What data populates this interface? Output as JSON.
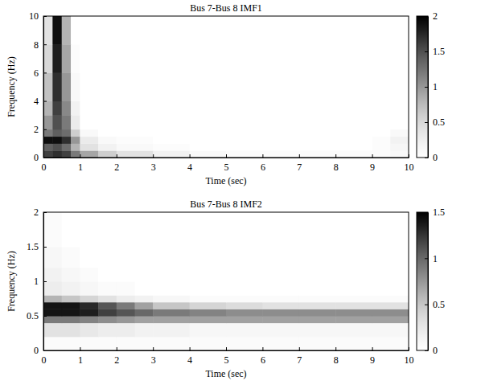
{
  "chart_data": [
    {
      "type": "heatmap",
      "title": "Bus 7-Bus 8 IMF1",
      "xlabel": "Time (sec)",
      "ylabel": "Frequency (Hz)",
      "x_edges": [
        0,
        0.25,
        0.5,
        0.75,
        1,
        1.5,
        2,
        3,
        4,
        5,
        6,
        7,
        8,
        9,
        9.5,
        10
      ],
      "y_edges": [
        0,
        0.5,
        1,
        1.5,
        2,
        3,
        4,
        6,
        8,
        10
      ],
      "cells": [
        [
          1.6,
          1.7,
          1.6,
          1.2,
          0.9,
          0.6,
          0.4,
          0.2,
          0.1,
          0.05,
          0.05,
          0.05,
          0.05,
          0.05,
          0.1
        ],
        [
          1.4,
          1.5,
          1.3,
          0.8,
          0.4,
          0.2,
          0.1,
          0.05,
          0,
          0,
          0,
          0,
          0,
          0.05,
          0.15
        ],
        [
          1.9,
          1.9,
          1.7,
          1.0,
          0.3,
          0.1,
          0.05,
          0,
          0,
          0,
          0,
          0,
          0,
          0.05,
          0.2
        ],
        [
          1.2,
          1.4,
          1.3,
          0.6,
          0.1,
          0,
          0,
          0,
          0,
          0,
          0,
          0,
          0,
          0,
          0.1
        ],
        [
          1.0,
          1.5,
          1.2,
          0.3,
          0,
          0,
          0,
          0,
          0,
          0,
          0,
          0,
          0,
          0,
          0
        ],
        [
          0.8,
          1.6,
          1.1,
          0.2,
          0,
          0,
          0,
          0,
          0,
          0,
          0,
          0,
          0,
          0,
          0
        ],
        [
          0.7,
          1.7,
          1.0,
          0.1,
          0,
          0,
          0,
          0,
          0,
          0,
          0,
          0,
          0,
          0,
          0
        ],
        [
          0.5,
          1.8,
          0.9,
          0.05,
          0,
          0,
          0,
          0,
          0,
          0,
          0,
          0,
          0,
          0,
          0
        ],
        [
          0.4,
          1.9,
          0.8,
          0,
          0,
          0,
          0,
          0,
          0,
          0,
          0,
          0,
          0,
          0,
          0
        ]
      ],
      "xlim": [
        0,
        10
      ],
      "xticks": [
        0,
        1,
        2,
        3,
        4,
        5,
        6,
        7,
        8,
        9,
        10
      ],
      "ylim": [
        0,
        10
      ],
      "yticks": [
        0,
        2,
        4,
        6,
        8,
        10
      ],
      "colorbar_range": [
        0,
        2
      ],
      "colorbar_ticks": [
        0,
        0.5,
        1,
        1.5,
        2
      ]
    },
    {
      "type": "heatmap",
      "title": "Bus 7-Bus 8 IMF2",
      "xlabel": "Time (sec)",
      "ylabel": "Frequency (Hz)",
      "x_edges": [
        0,
        0.5,
        1,
        1.5,
        2,
        2.5,
        3,
        4,
        5,
        6,
        7,
        8,
        9,
        10
      ],
      "y_edges": [
        0,
        0.2,
        0.4,
        0.5,
        0.6,
        0.7,
        0.8,
        1,
        1.2,
        1.5,
        2
      ],
      "cells": [
        [
          0.05,
          0.05,
          0.05,
          0.05,
          0.05,
          0.05,
          0.05,
          0.05,
          0.05,
          0.05,
          0.05,
          0.05,
          0.05
        ],
        [
          0.3,
          0.3,
          0.25,
          0.2,
          0.2,
          0.15,
          0.15,
          0.1,
          0.1,
          0.1,
          0.1,
          0.1,
          0.1
        ],
        [
          0.9,
          0.9,
          0.85,
          0.8,
          0.75,
          0.7,
          0.7,
          0.7,
          0.7,
          0.7,
          0.7,
          0.7,
          0.7
        ],
        [
          1.4,
          1.4,
          1.35,
          1.2,
          1.1,
          1.0,
          0.9,
          0.85,
          0.8,
          0.8,
          0.8,
          0.8,
          0.8
        ],
        [
          1.4,
          1.4,
          1.3,
          1.1,
          0.9,
          0.7,
          0.5,
          0.4,
          0.35,
          0.3,
          0.3,
          0.3,
          0.3
        ],
        [
          0.6,
          0.5,
          0.4,
          0.3,
          0.2,
          0.15,
          0.1,
          0.05,
          0.05,
          0.05,
          0.05,
          0.05,
          0.05
        ],
        [
          0.2,
          0.15,
          0.1,
          0.05,
          0.05,
          0,
          0,
          0,
          0,
          0,
          0,
          0,
          0
        ],
        [
          0.15,
          0.1,
          0.05,
          0,
          0,
          0,
          0,
          0,
          0,
          0,
          0,
          0,
          0
        ],
        [
          0.1,
          0.05,
          0,
          0,
          0,
          0,
          0,
          0,
          0,
          0,
          0,
          0,
          0
        ],
        [
          0.05,
          0,
          0,
          0,
          0,
          0,
          0,
          0,
          0,
          0,
          0,
          0,
          0
        ]
      ],
      "xlim": [
        0,
        10
      ],
      "xticks": [
        0,
        1,
        2,
        3,
        4,
        5,
        6,
        7,
        8,
        9,
        10
      ],
      "ylim": [
        0,
        2
      ],
      "yticks": [
        0,
        0.5,
        1,
        1.5,
        2
      ],
      "colorbar_range": [
        0,
        1.5
      ],
      "colorbar_ticks": [
        0,
        0.5,
        1,
        1.5
      ]
    }
  ]
}
